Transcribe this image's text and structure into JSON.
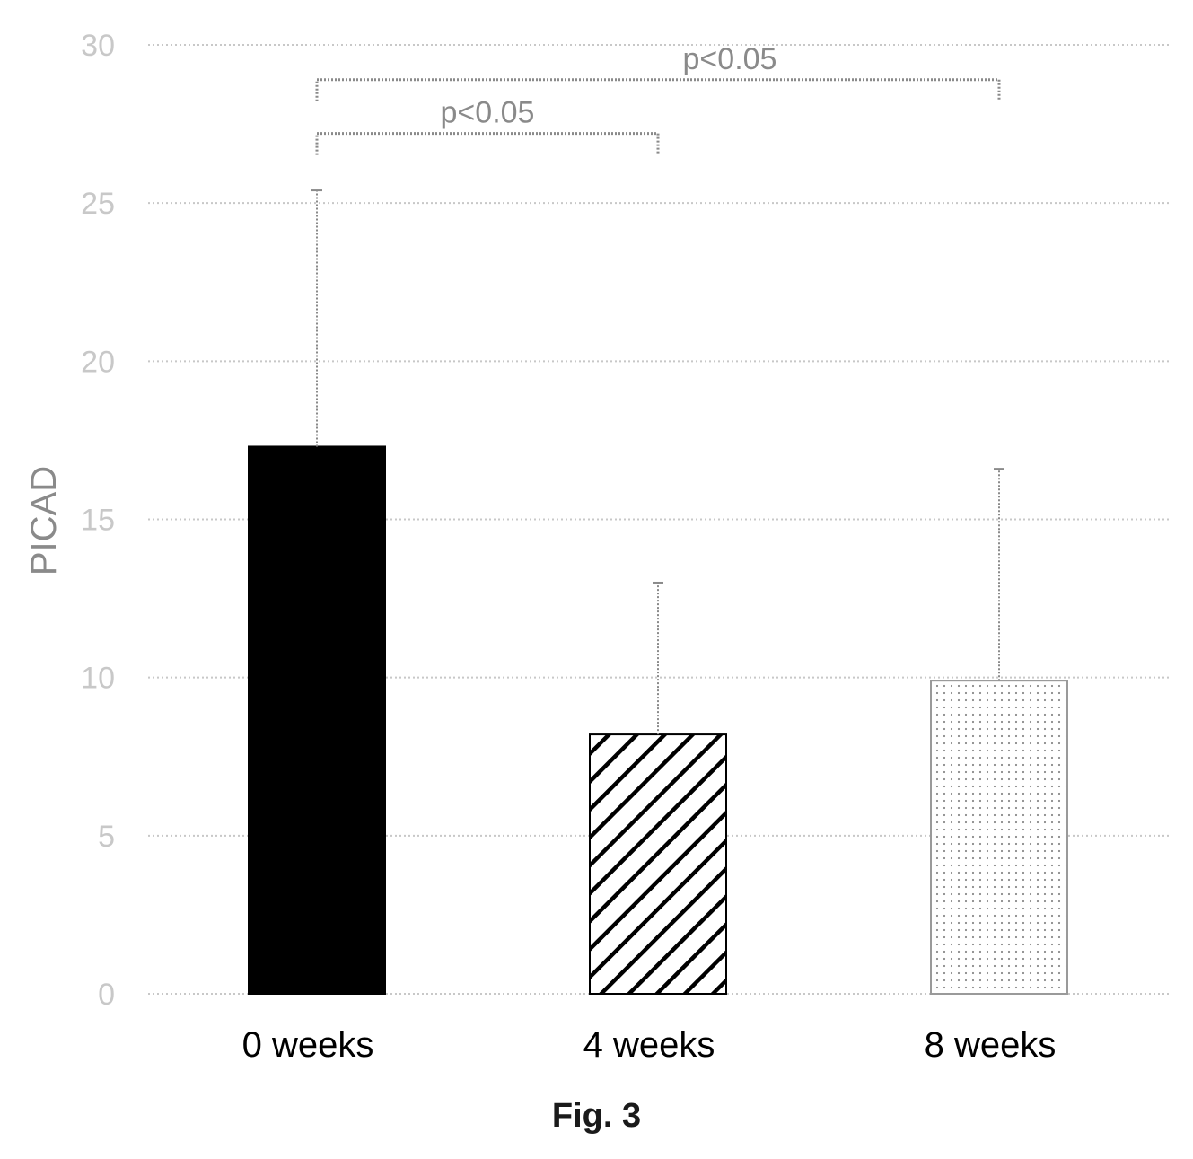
{
  "chart_data": {
    "type": "bar",
    "categories": [
      "0 weeks",
      "4 weeks",
      "8 weeks"
    ],
    "values": [
      17.3,
      8.2,
      9.9
    ],
    "error_upper": [
      25.4,
      13.0,
      16.6
    ],
    "ylabel": "PICAD",
    "xlabel": "",
    "ylim": [
      0,
      30
    ],
    "yticks": [
      0,
      5,
      10,
      15,
      20,
      25,
      30
    ],
    "grid": true,
    "bar_fills": [
      "solid-black",
      "diagonal-hatch",
      "dotted"
    ],
    "significance": [
      {
        "from": "0 weeks",
        "to": "8 weeks",
        "label": "p<0.05",
        "level": 28.9
      },
      {
        "from": "0 weeks",
        "to": "4 weeks",
        "label": "p<0.05",
        "level": 27.2
      }
    ]
  },
  "caption": "Fig. 3",
  "colors": {
    "grid": "#c8c8c8",
    "bar_dark": "#000000",
    "error_bar": "#8a8a8a",
    "tick_text": "#c8c8c8"
  }
}
